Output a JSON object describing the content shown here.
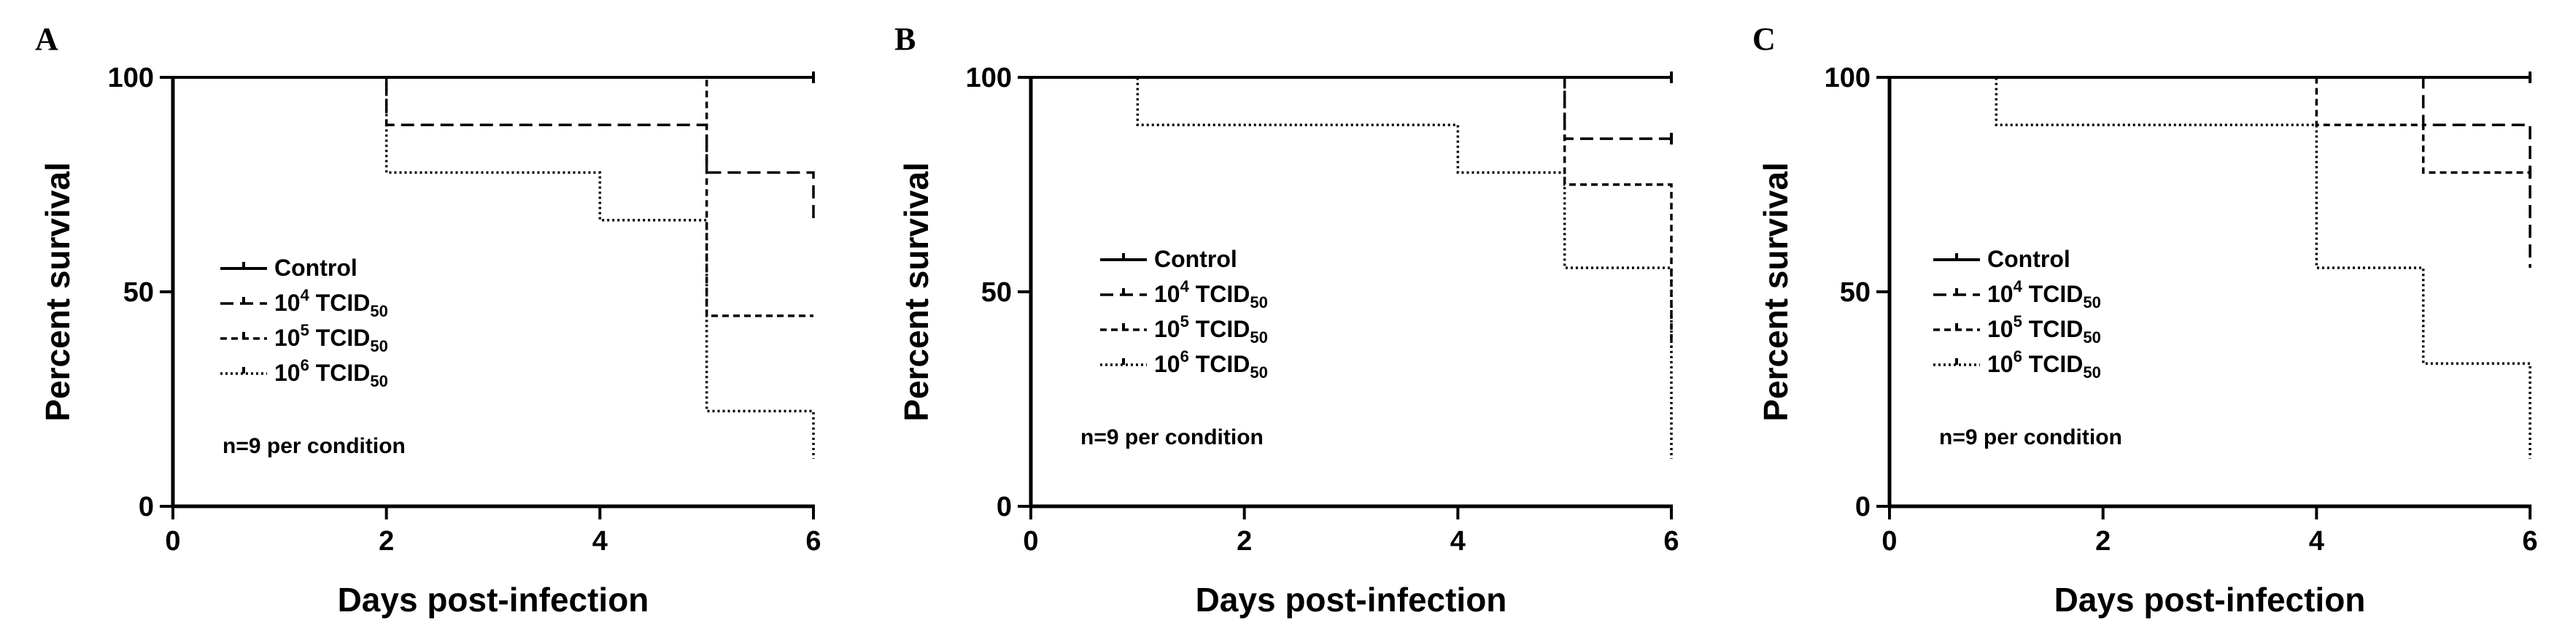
{
  "chart_data": [
    {
      "type": "line",
      "subtype": "kaplan-meier-survival",
      "panel_label": "A",
      "xlabel": "Days post-infection",
      "ylabel": "Percent survival",
      "xlim": [
        0,
        6
      ],
      "ylim": [
        0,
        100
      ],
      "xticks": [
        "0",
        "2",
        "4",
        "6"
      ],
      "yticks": [
        "0",
        "50",
        "100"
      ],
      "note": "n=9 per condition",
      "legend_position": "left-middle",
      "series": [
        {
          "name": "Control",
          "line_style": "solid",
          "legend": {
            "main": "Control",
            "sup": "",
            "unit": "",
            "sub": ""
          },
          "steps": [
            [
              0,
              100
            ],
            [
              6,
              100
            ]
          ],
          "censor_x": [
            6
          ]
        },
        {
          "name": "10^4 TCID50",
          "line_style": "dashed",
          "legend": {
            "main": "10",
            "sup": "4",
            "unit": " TCID",
            "sub": "50"
          },
          "steps": [
            [
              0,
              100
            ],
            [
              2,
              88.9
            ],
            [
              5,
              77.8
            ],
            [
              6,
              66.7
            ]
          ],
          "censor_x": []
        },
        {
          "name": "10^5 TCID50",
          "line_style": "short-dashed",
          "legend": {
            "main": "10",
            "sup": "5",
            "unit": " TCID",
            "sub": "50"
          },
          "steps": [
            [
              0,
              100
            ],
            [
              5,
              44.4
            ],
            [
              6,
              44.4
            ]
          ],
          "censor_x": []
        },
        {
          "name": "10^6 TCID50",
          "line_style": "dotted",
          "legend": {
            "main": "10",
            "sup": "6",
            "unit": " TCID",
            "sub": "50"
          },
          "steps": [
            [
              0,
              100
            ],
            [
              2,
              77.8
            ],
            [
              4,
              66.7
            ],
            [
              5,
              22.2
            ],
            [
              6,
              11.1
            ]
          ],
          "censor_x": []
        }
      ]
    },
    {
      "type": "line",
      "subtype": "kaplan-meier-survival",
      "panel_label": "B",
      "xlabel": "Days post-infection",
      "ylabel": "Percent survival",
      "xlim": [
        0,
        6
      ],
      "ylim": [
        0,
        100
      ],
      "xticks": [
        "0",
        "2",
        "4",
        "6"
      ],
      "yticks": [
        "0",
        "50",
        "100"
      ],
      "note": "n=9 per condition",
      "legend_position": "left-middle",
      "series": [
        {
          "name": "Control",
          "line_style": "solid",
          "legend": {
            "main": "Control",
            "sup": "",
            "unit": "",
            "sub": ""
          },
          "steps": [
            [
              0,
              100
            ],
            [
              6,
              100
            ]
          ],
          "censor_x": [
            6
          ]
        },
        {
          "name": "10^4 TCID50",
          "line_style": "dashed",
          "legend": {
            "main": "10",
            "sup": "4",
            "unit": " TCID",
            "sub": "50"
          },
          "steps": [
            [
              0,
              100
            ],
            [
              5,
              85.7
            ],
            [
              6,
              85.7
            ]
          ],
          "censor_x": [
            6
          ]
        },
        {
          "name": "10^5 TCID50",
          "line_style": "short-dashed",
          "legend": {
            "main": "10",
            "sup": "5",
            "unit": " TCID",
            "sub": "50"
          },
          "steps": [
            [
              0,
              100
            ],
            [
              5,
              75
            ],
            [
              6,
              37.5
            ]
          ],
          "censor_x": []
        },
        {
          "name": "10^6 TCID50",
          "line_style": "dotted",
          "legend": {
            "main": "10",
            "sup": "6",
            "unit": " TCID",
            "sub": "50"
          },
          "steps": [
            [
              0,
              100
            ],
            [
              1,
              88.9
            ],
            [
              4,
              77.8
            ],
            [
              5,
              55.6
            ],
            [
              6,
              11.1
            ]
          ],
          "censor_x": []
        }
      ]
    },
    {
      "type": "line",
      "subtype": "kaplan-meier-survival",
      "panel_label": "C",
      "xlabel": "Days post-infection",
      "ylabel": "Percent survival",
      "xlim": [
        0,
        6
      ],
      "ylim": [
        0,
        100
      ],
      "xticks": [
        "0",
        "2",
        "4",
        "6"
      ],
      "yticks": [
        "0",
        "50",
        "100"
      ],
      "note": "n=9 per condition",
      "legend_position": "left-middle",
      "series": [
        {
          "name": "Control",
          "line_style": "solid",
          "legend": {
            "main": "Control",
            "sup": "",
            "unit": "",
            "sub": ""
          },
          "steps": [
            [
              0,
              100
            ],
            [
              6,
              100
            ]
          ],
          "censor_x": [
            6
          ]
        },
        {
          "name": "10^4 TCID50",
          "line_style": "dashed",
          "legend": {
            "main": "10",
            "sup": "4",
            "unit": " TCID",
            "sub": "50"
          },
          "steps": [
            [
              0,
              100
            ],
            [
              5,
              88.9
            ],
            [
              6,
              55.6
            ]
          ],
          "censor_x": []
        },
        {
          "name": "10^5 TCID50",
          "line_style": "short-dashed",
          "legend": {
            "main": "10",
            "sup": "5",
            "unit": " TCID",
            "sub": "50"
          },
          "steps": [
            [
              0,
              100
            ],
            [
              4,
              88.9
            ],
            [
              5,
              77.8
            ],
            [
              6,
              77.8
            ]
          ],
          "censor_x": [
            6
          ]
        },
        {
          "name": "10^6 TCID50",
          "line_style": "dotted",
          "legend": {
            "main": "10",
            "sup": "6",
            "unit": " TCID",
            "sub": "50"
          },
          "steps": [
            [
              0,
              100
            ],
            [
              1,
              88.9
            ],
            [
              4,
              55.6
            ],
            [
              5,
              33.3
            ],
            [
              6,
              11.1
            ]
          ],
          "censor_x": []
        }
      ]
    }
  ]
}
